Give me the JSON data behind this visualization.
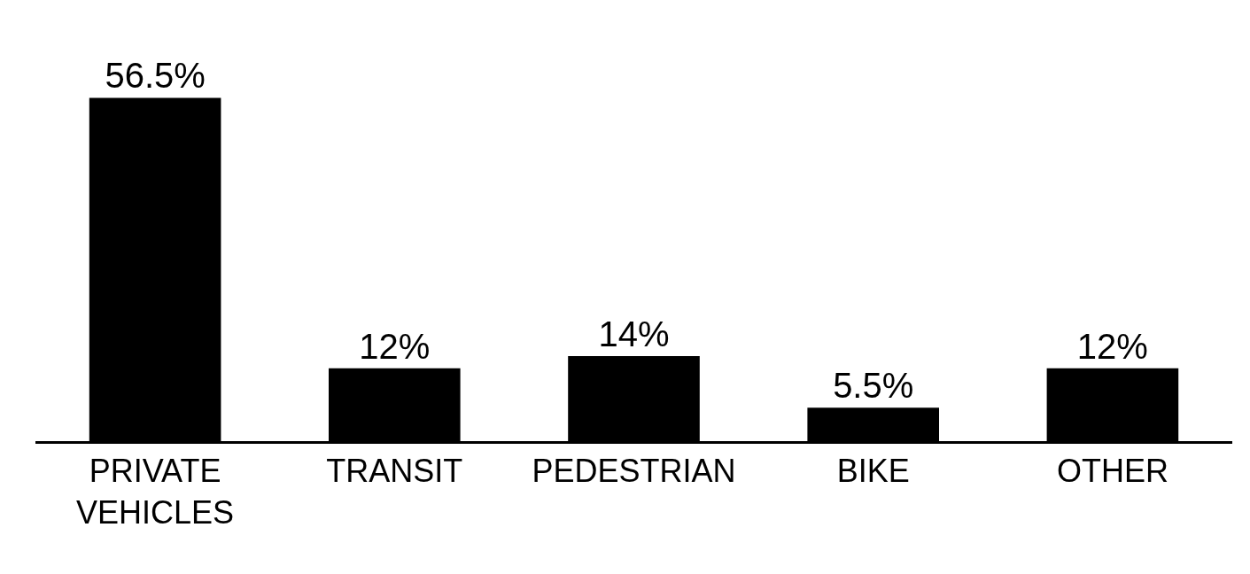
{
  "chart_data": {
    "type": "bar",
    "categories": [
      "PRIVATE\nVEHICLES",
      "TRANSIT",
      "PEDESTRIAN",
      "BIKE",
      "OTHER"
    ],
    "values": [
      56.5,
      12,
      14,
      5.5,
      12
    ],
    "value_labels": [
      "56.5%",
      "12%",
      "14%",
      "5.5%",
      "12%"
    ],
    "color": "#000000"
  }
}
